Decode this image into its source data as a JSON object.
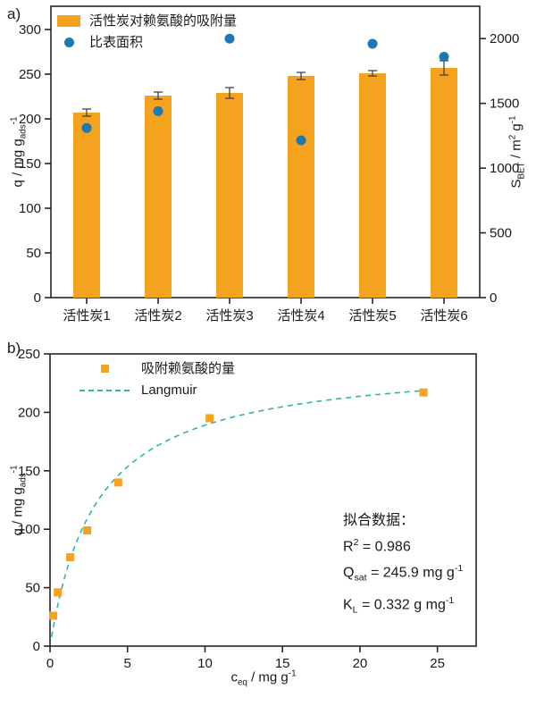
{
  "colors": {
    "bar_orange": "#F5A31F",
    "dot_blue": "#1F77B4",
    "fit_teal": "#2CB5A8",
    "axis": "#262626",
    "text": "#1a1a1a"
  },
  "panel_a": {
    "label": "a)"
  },
  "panel_b": {
    "label": "b)",
    "annotation": {
      "title": "拟合数据：",
      "r2": {
        "base": "R",
        "sup": "2",
        "rest": " = 0.986"
      },
      "qsat": {
        "base": "Q",
        "sub": "sat",
        "rest": " = 245.9 mg g",
        "sup": "-1"
      },
      "kl": {
        "base": "K",
        "sub": "L",
        "rest": " = 0.332 g mg",
        "sup": "-1"
      }
    }
  },
  "labels": {
    "q_axis": {
      "pre": "q / mg g",
      "sub": "ads",
      "sup": "-1"
    },
    "s_axis": {
      "pre": "S",
      "sub": "BET",
      "mid": " / m",
      "sup1": "2",
      "mid2": " g",
      "sup2": "-1"
    },
    "c_axis": {
      "pre": "c",
      "sub": "eq",
      "mid": " / mg g",
      "sup": "-1"
    }
  },
  "chart_data": [
    {
      "id": "panel_a",
      "type": "bar",
      "categories": [
        "活性炭1",
        "活性炭2",
        "活性炭3",
        "活性炭4",
        "活性炭5",
        "活性炭6"
      ],
      "series": [
        {
          "name": "活性炭对赖氨酸的吸附量",
          "type": "bar",
          "axis": "left",
          "values": [
            207,
            226,
            229,
            248,
            251,
            257
          ],
          "errors": [
            4,
            4,
            6,
            4,
            3,
            8
          ]
        },
        {
          "name": "比表面积",
          "type": "scatter",
          "axis": "right",
          "values": [
            1310,
            1440,
            2000,
            1215,
            1960,
            1860
          ]
        }
      ],
      "left_axis": {
        "label": "q / mg g_ads^-1",
        "ticks": [
          0,
          50,
          100,
          150,
          200,
          250,
          300
        ],
        "lim": [
          0,
          326
        ]
      },
      "right_axis": {
        "label": "S_BET / m^2 g^-1",
        "ticks": [
          0,
          500,
          1000,
          1500,
          2000
        ],
        "lim": [
          0,
          2250
        ]
      },
      "grid": false,
      "legend_position": "upper left"
    },
    {
      "id": "panel_b",
      "type": "scatter",
      "series": [
        {
          "name": "吸附赖氨酸的量",
          "marker": "square",
          "points": [
            [
              0.2,
              26
            ],
            [
              0.5,
              46
            ],
            [
              1.3,
              76
            ],
            [
              2.4,
              99
            ],
            [
              4.4,
              140
            ],
            [
              10.3,
              195
            ],
            [
              24.1,
              217
            ]
          ]
        }
      ],
      "fit": {
        "name": "Langmuir",
        "style": "dashed",
        "Qsat": 245.9,
        "KL": 0.332,
        "R2": 0.986,
        "x_range": [
          0.1,
          24.1
        ]
      },
      "x_axis": {
        "label": "c_eq / mg g^-1",
        "ticks": [
          0,
          5,
          10,
          15,
          20,
          25
        ],
        "lim": [
          0,
          27.5
        ]
      },
      "y_axis": {
        "label": "q / mg g_ads^-1",
        "ticks": [
          0,
          50,
          100,
          150,
          200,
          250
        ],
        "lim": [
          0,
          250
        ]
      },
      "grid": false,
      "legend_position": "upper left"
    }
  ]
}
